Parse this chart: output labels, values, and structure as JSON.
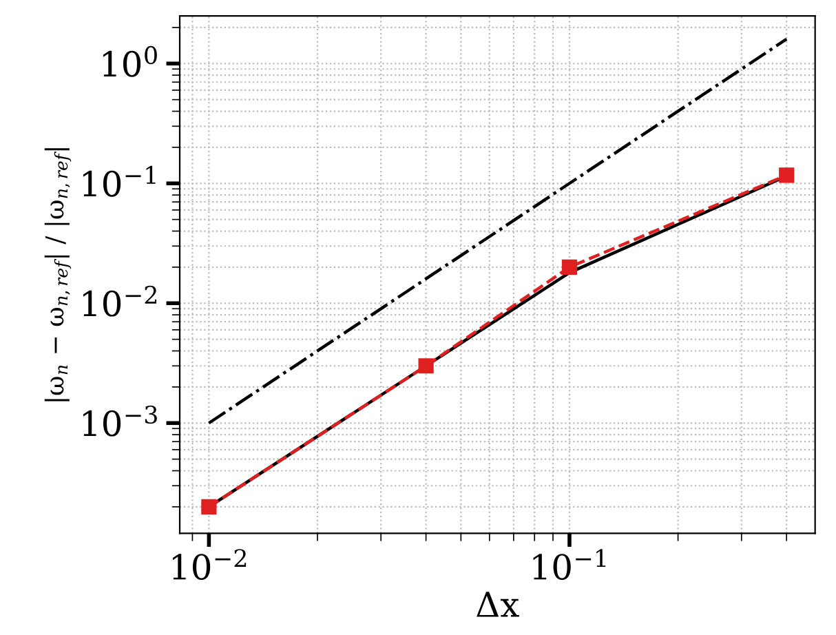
{
  "chart_data": {
    "type": "line",
    "xlabel": "Δx",
    "ylabel": "|ω$_{n}$ − ω$_{n,ref}$| / |ω$_{n,ref}$|",
    "log": "xy",
    "grid": true,
    "series": [
      {
        "color": "#000000",
        "x": [
          0.01,
          0.04,
          0.1,
          0.4
        ],
        "values": [
          0.0002,
          0.003,
          0.018,
          0.115
        ],
        "line_style": "solid",
        "marker": "none"
      },
      {
        "color": "#e02020",
        "x": [
          0.01,
          0.04,
          0.1,
          0.4
        ],
        "values": [
          0.0002,
          0.003,
          0.02,
          0.117
        ],
        "line_style": "dashed",
        "marker": "square"
      },
      {
        "color": "#000000",
        "x": [
          0.01,
          0.4
        ],
        "values": [
          0.001,
          1.6
        ],
        "line_style": "dashdot",
        "marker": "none"
      }
    ],
    "xlim": [
      0.0083,
      0.48
    ],
    "ylim": [
      0.00012,
      2.5
    ],
    "xticks": [
      {
        "value": 0.01,
        "label": "10$^{−2}$"
      },
      {
        "value": 0.1,
        "label": "10$^{−1}$"
      }
    ],
    "yticks": [
      {
        "value": 0.001,
        "label": "10$^{−3}$"
      },
      {
        "value": 0.01,
        "label": "10$^{−2}$"
      },
      {
        "value": 0.1,
        "label": "10$^{−1}$"
      },
      {
        "value": 1,
        "label": "10$^{0}$"
      }
    ]
  }
}
